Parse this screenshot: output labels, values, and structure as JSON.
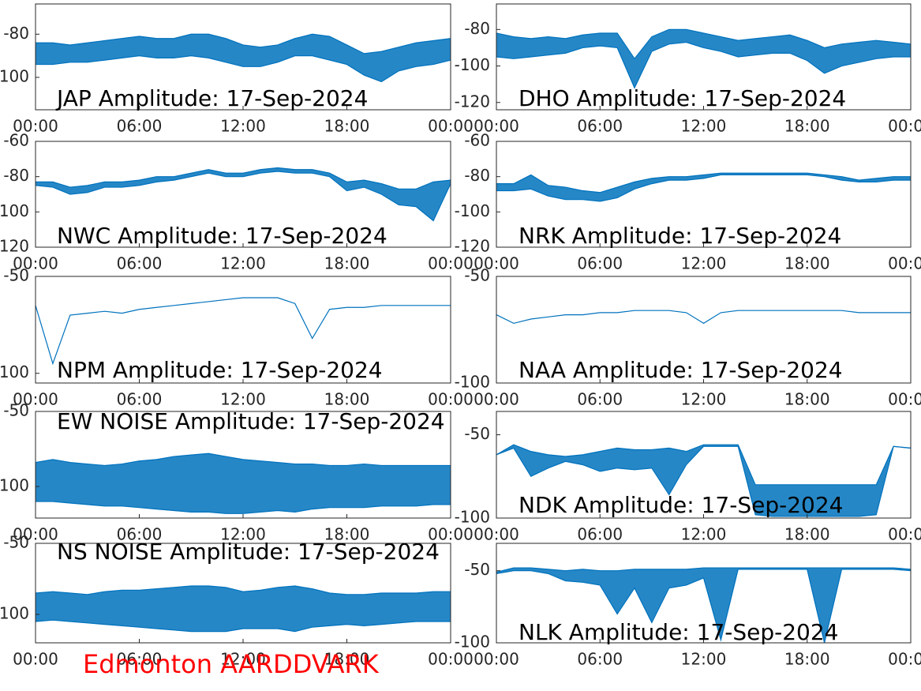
{
  "chart_data": [
    {
      "type": "line",
      "title": "JAP Amplitude: 17-Sep-2024",
      "x": [
        0,
        1,
        2,
        3,
        4,
        5,
        6,
        7,
        8,
        9,
        10,
        11,
        12,
        13,
        14,
        15,
        16,
        17,
        18,
        19,
        20,
        21,
        22,
        23,
        24
      ],
      "xlim": [
        0,
        24
      ],
      "xticks": [
        {
          "value": 0,
          "label": "00:00"
        },
        {
          "value": 6,
          "label": "06:00"
        },
        {
          "value": 12,
          "label": "12:00"
        },
        {
          "value": 18,
          "label": "18:00"
        },
        {
          "value": 24,
          "label": "00:00"
        }
      ],
      "ylim": [
        -115,
        -66
      ],
      "yticks": [
        -80,
        -100
      ],
      "series": [
        {
          "color": "#0072bd",
          "values": [
            -84,
            -84,
            -85,
            -84,
            -83,
            -82,
            -81,
            -82,
            -82,
            -80,
            -80,
            -82,
            -85,
            -86,
            -85,
            -82,
            -80,
            -81,
            -85,
            -89,
            -88,
            -86,
            -84,
            -83,
            -82
          ]
        },
        {
          "color": "#0072bd",
          "values": [
            -94,
            -94,
            -93,
            -93,
            -92,
            -91,
            -90,
            -91,
            -91,
            -90,
            -91,
            -93,
            -95,
            -95,
            -93,
            -90,
            -90,
            -92,
            -94,
            -99,
            -102,
            -97,
            -95,
            -94,
            -92
          ]
        }
      ]
    },
    {
      "type": "line",
      "title": "DHO Amplitude: 17-Sep-2024",
      "x": [
        0,
        1,
        2,
        3,
        4,
        5,
        6,
        7,
        8,
        9,
        10,
        11,
        12,
        13,
        14,
        15,
        16,
        17,
        18,
        19,
        20,
        21,
        22,
        23,
        24
      ],
      "xlim": [
        0,
        24
      ],
      "xticks": [
        {
          "value": 0,
          "label": "00:00"
        },
        {
          "value": 6,
          "label": "06:00"
        },
        {
          "value": 12,
          "label": "12:00"
        },
        {
          "value": 18,
          "label": "18:00"
        },
        {
          "value": 24,
          "label": "00:00"
        }
      ],
      "ylim": [
        -124,
        -66
      ],
      "yticks": [
        -80,
        -100,
        -120
      ],
      "series": [
        {
          "color": "#0072bd",
          "values": [
            -82,
            -84,
            -85,
            -84,
            -85,
            -83,
            -82,
            -82,
            -96,
            -84,
            -80,
            -80,
            -82,
            -84,
            -86,
            -85,
            -84,
            -83,
            -86,
            -90,
            -88,
            -87,
            -86,
            -87,
            -88
          ]
        },
        {
          "color": "#0072bd",
          "values": [
            -95,
            -96,
            -95,
            -94,
            -93,
            -90,
            -89,
            -90,
            -112,
            -92,
            -88,
            -87,
            -90,
            -92,
            -95,
            -94,
            -93,
            -93,
            -97,
            -104,
            -100,
            -98,
            -96,
            -95,
            -95
          ]
        }
      ]
    },
    {
      "type": "line",
      "title": "NWC Amplitude: 17-Sep-2024",
      "x": [
        0,
        1,
        2,
        3,
        4,
        5,
        6,
        7,
        8,
        9,
        10,
        11,
        12,
        13,
        14,
        15,
        16,
        17,
        18,
        19,
        20,
        21,
        22,
        23,
        24
      ],
      "xlim": [
        0,
        24
      ],
      "xticks": [
        {
          "value": 0,
          "label": "00:00"
        },
        {
          "value": 6,
          "label": "06:00"
        },
        {
          "value": 12,
          "label": "12:00"
        },
        {
          "value": 18,
          "label": "18:00"
        },
        {
          "value": 24,
          "label": "00:00"
        }
      ],
      "ylim": [
        -120,
        -60
      ],
      "yticks": [
        -60,
        -80,
        -100,
        -120
      ],
      "series": [
        {
          "color": "#0072bd",
          "values": [
            -83,
            -83,
            -86,
            -85,
            -83,
            -83,
            -82,
            -80,
            -80,
            -78,
            -76,
            -78,
            -78,
            -76,
            -75,
            -76,
            -76,
            -78,
            -83,
            -82,
            -84,
            -87,
            -87,
            -83,
            -82
          ]
        },
        {
          "color": "#0072bd",
          "values": [
            -85,
            -86,
            -90,
            -89,
            -86,
            -86,
            -85,
            -83,
            -82,
            -80,
            -78,
            -80,
            -80,
            -78,
            -77,
            -78,
            -78,
            -80,
            -88,
            -86,
            -90,
            -96,
            -97,
            -105,
            -84
          ]
        }
      ]
    },
    {
      "type": "line",
      "title": "NRK Amplitude: 17-Sep-2024",
      "x": [
        0,
        1,
        2,
        3,
        4,
        5,
        6,
        7,
        8,
        9,
        10,
        11,
        12,
        13,
        14,
        15,
        16,
        17,
        18,
        19,
        20,
        21,
        22,
        23,
        24
      ],
      "xlim": [
        0,
        24
      ],
      "xticks": [
        {
          "value": 0,
          "label": "00:00"
        },
        {
          "value": 6,
          "label": "06:00"
        },
        {
          "value": 12,
          "label": "12:00"
        },
        {
          "value": 18,
          "label": "18:00"
        },
        {
          "value": 24,
          "label": "00:00"
        }
      ],
      "ylim": [
        -120,
        -60
      ],
      "yticks": [
        -60,
        -80,
        -100,
        -120
      ],
      "series": [
        {
          "color": "#0072bd",
          "values": [
            -84,
            -84,
            -79,
            -85,
            -86,
            -88,
            -89,
            -86,
            -83,
            -81,
            -80,
            -80,
            -79,
            -78,
            -78,
            -78,
            -78,
            -78,
            -78,
            -79,
            -80,
            -82,
            -81,
            -80,
            -80
          ]
        },
        {
          "color": "#0072bd",
          "values": [
            -88,
            -88,
            -87,
            -91,
            -93,
            -93,
            -94,
            -92,
            -87,
            -84,
            -82,
            -82,
            -81,
            -79,
            -79,
            -79,
            -79,
            -79,
            -79,
            -80,
            -82,
            -83,
            -83,
            -82,
            -82
          ]
        }
      ]
    },
    {
      "type": "line",
      "title": "NPM Amplitude: 17-Sep-2024",
      "x": [
        0,
        1,
        2,
        3,
        4,
        5,
        6,
        7,
        8,
        9,
        10,
        11,
        12,
        13,
        14,
        15,
        16,
        17,
        18,
        19,
        20,
        21,
        22,
        23,
        24
      ],
      "xlim": [
        0,
        24
      ],
      "xticks": [
        {
          "value": 0,
          "label": "00:00"
        },
        {
          "value": 6,
          "label": "06:00"
        },
        {
          "value": 12,
          "label": "12:00"
        },
        {
          "value": 18,
          "label": "18:00"
        },
        {
          "value": 24,
          "label": "00:00"
        }
      ],
      "ylim": [
        -105,
        -50
      ],
      "yticks": [
        -50,
        -100
      ],
      "series": [
        {
          "color": "#0072bd",
          "values": [
            -65,
            -95,
            -70,
            -69,
            -68,
            -69,
            -67,
            -66,
            -65,
            -64,
            -63,
            -62,
            -61,
            -61,
            -61,
            -64,
            -82,
            -67,
            -66,
            -66,
            -65,
            -65,
            -65,
            -65,
            -65
          ]
        }
      ]
    },
    {
      "type": "line",
      "title": "NAA Amplitude: 17-Sep-2024",
      "x": [
        0,
        1,
        2,
        3,
        4,
        5,
        6,
        7,
        8,
        9,
        10,
        11,
        12,
        13,
        14,
        15,
        16,
        17,
        18,
        19,
        20,
        21,
        22,
        23,
        24
      ],
      "xlim": [
        0,
        24
      ],
      "xticks": [
        {
          "value": 0,
          "label": "00:00"
        },
        {
          "value": 6,
          "label": "06:00"
        },
        {
          "value": 12,
          "label": "12:00"
        },
        {
          "value": 18,
          "label": "18:00"
        },
        {
          "value": 24,
          "label": "00:00"
        }
      ],
      "ylim": [
        -100,
        -50
      ],
      "yticks": [
        -50,
        -100
      ],
      "series": [
        {
          "color": "#0072bd",
          "values": [
            -68,
            -72,
            -70,
            -69,
            -68,
            -68,
            -67,
            -67,
            -66,
            -66,
            -66,
            -67,
            -72,
            -67,
            -66,
            -66,
            -66,
            -66,
            -66,
            -66,
            -66,
            -67,
            -67,
            -67,
            -67
          ]
        }
      ]
    },
    {
      "type": "line",
      "title": "EW NOISE Amplitude: 17-Sep-2024",
      "x": [
        0,
        1,
        2,
        3,
        4,
        5,
        6,
        7,
        8,
        9,
        10,
        11,
        12,
        13,
        14,
        15,
        16,
        17,
        18,
        19,
        20,
        21,
        22,
        23,
        24
      ],
      "xlim": [
        0,
        24
      ],
      "xticks": [
        {
          "value": 0,
          "label": "00:00"
        },
        {
          "value": 6,
          "label": "06:00"
        },
        {
          "value": 12,
          "label": "12:00"
        },
        {
          "value": 18,
          "label": "18:00"
        },
        {
          "value": 24,
          "label": "00:00"
        }
      ],
      "ylim": [
        -121,
        -50
      ],
      "yticks": [
        -50,
        -100
      ],
      "series": [
        {
          "color": "#0072bd",
          "values": [
            -84,
            -82,
            -84,
            -85,
            -86,
            -85,
            -83,
            -82,
            -80,
            -79,
            -78,
            -80,
            -82,
            -83,
            -84,
            -85,
            -85,
            -86,
            -86,
            -85,
            -86,
            -86,
            -86,
            -86,
            -86
          ]
        },
        {
          "color": "#0072bd",
          "values": [
            -110,
            -110,
            -111,
            -112,
            -113,
            -113,
            -114,
            -115,
            -116,
            -117,
            -117,
            -118,
            -118,
            -117,
            -116,
            -117,
            -115,
            -114,
            -114,
            -114,
            -113,
            -113,
            -113,
            -112,
            -112
          ]
        }
      ]
    },
    {
      "type": "line",
      "title": "NDK Amplitude: 17-Sep-2024",
      "x": [
        0,
        1,
        2,
        3,
        4,
        5,
        6,
        7,
        8,
        9,
        10,
        11,
        12,
        13,
        14,
        15,
        16,
        17,
        18,
        19,
        20,
        21,
        22,
        23,
        24
      ],
      "xlim": [
        0,
        24
      ],
      "xticks": [
        {
          "value": 0,
          "label": "00:00"
        },
        {
          "value": 6,
          "label": "06:00"
        },
        {
          "value": 12,
          "label": "12:00"
        },
        {
          "value": 18,
          "label": "18:00"
        },
        {
          "value": 24,
          "label": "00:00"
        }
      ],
      "ylim": [
        -100,
        -36
      ],
      "yticks": [
        -50,
        -100
      ],
      "series": [
        {
          "color": "#0072bd",
          "values": [
            -62,
            -56,
            -60,
            -62,
            -63,
            -62,
            -60,
            -58,
            -59,
            -59,
            -58,
            -60,
            -56,
            -56,
            -56,
            -80,
            -80,
            -80,
            -80,
            -80,
            -80,
            -80,
            -80,
            -57,
            -58
          ]
        },
        {
          "color": "#0072bd",
          "values": [
            -62,
            -58,
            -75,
            -70,
            -66,
            -68,
            -72,
            -70,
            -71,
            -70,
            -86,
            -68,
            -57,
            -57,
            -57,
            -98,
            -99,
            -99,
            -99,
            -99,
            -99,
            -99,
            -98,
            -57,
            -58
          ]
        }
      ]
    },
    {
      "type": "line",
      "title": "NS NOISE Amplitude: 17-Sep-2024",
      "x": [
        0,
        1,
        2,
        3,
        4,
        5,
        6,
        7,
        8,
        9,
        10,
        11,
        12,
        13,
        14,
        15,
        16,
        17,
        18,
        19,
        20,
        21,
        22,
        23,
        24
      ],
      "xlim": [
        0,
        24
      ],
      "xticks": [
        {
          "value": 0,
          "label": "00:00"
        },
        {
          "value": 6,
          "label": "06:00"
        },
        {
          "value": 12,
          "label": "12:00"
        },
        {
          "value": 18,
          "label": "18:00"
        },
        {
          "value": 24,
          "label": "00:00"
        }
      ],
      "ylim": [
        -120,
        -50
      ],
      "yticks": [
        -50,
        -100
      ],
      "series": [
        {
          "color": "#0072bd",
          "values": [
            -85,
            -84,
            -85,
            -86,
            -84,
            -83,
            -83,
            -82,
            -81,
            -80,
            -80,
            -81,
            -84,
            -83,
            -81,
            -80,
            -82,
            -85,
            -86,
            -86,
            -85,
            -85,
            -85,
            -84,
            -84
          ]
        },
        {
          "color": "#0072bd",
          "values": [
            -105,
            -104,
            -105,
            -106,
            -107,
            -108,
            -109,
            -110,
            -111,
            -112,
            -112,
            -112,
            -110,
            -110,
            -110,
            -112,
            -109,
            -108,
            -107,
            -108,
            -107,
            -106,
            -105,
            -105,
            -105
          ]
        }
      ]
    },
    {
      "type": "line",
      "title": "NLK Amplitude: 17-Sep-2024",
      "x": [
        0,
        1,
        2,
        3,
        4,
        5,
        6,
        7,
        8,
        9,
        10,
        11,
        12,
        13,
        14,
        15,
        16,
        17,
        18,
        19,
        20,
        21,
        22,
        23,
        24
      ],
      "xlim": [
        0,
        24
      ],
      "xticks": [
        {
          "value": 0,
          "label": "00:00"
        },
        {
          "value": 6,
          "label": "06:00"
        },
        {
          "value": 12,
          "label": "12:00"
        },
        {
          "value": 18,
          "label": "18:00"
        },
        {
          "value": 24,
          "label": "00:00"
        }
      ],
      "ylim": [
        -100,
        -31
      ],
      "yticks": [
        -50,
        -100
      ],
      "series": [
        {
          "color": "#0072bd",
          "values": [
            -51,
            -48,
            -48,
            -49,
            -50,
            -49,
            -50,
            -50,
            -49,
            -49,
            -49,
            -49,
            -48,
            -48,
            -48,
            -48,
            -48,
            -48,
            -48,
            -48,
            -48,
            -48,
            -48,
            -48,
            -49
          ]
        },
        {
          "color": "#0072bd",
          "values": [
            -52,
            -50,
            -50,
            -52,
            -57,
            -58,
            -60,
            -80,
            -62,
            -86,
            -62,
            -60,
            -55,
            -98,
            -49,
            -49,
            -49,
            -49,
            -49,
            -100,
            -49,
            -49,
            -49,
            -49,
            -50
          ]
        }
      ]
    }
  ],
  "annotation": "Edmonton AARDDVARK"
}
